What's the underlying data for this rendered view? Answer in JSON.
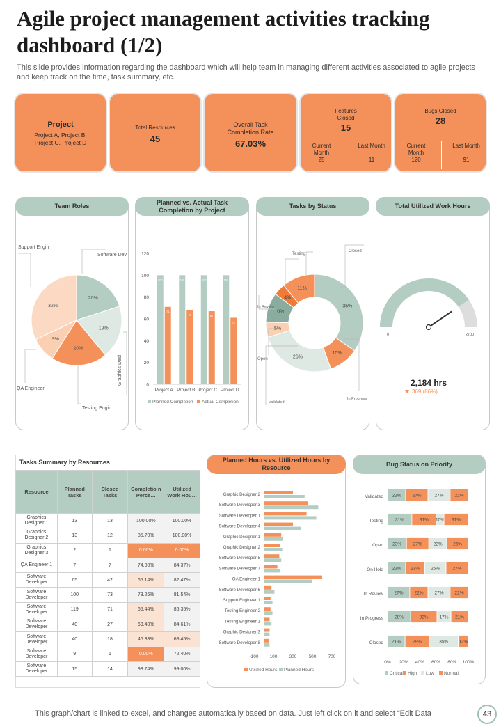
{
  "title": "Agile project management activities tracking dashboard (1/2)",
  "subtitle": "This slide provides information regarding the dashboard which will help team in managing different activities associated to agile projects and keep track on the time, task summary, etc.",
  "kpis": {
    "project_label": "Project",
    "project_value": "Project A, Project B, Project C, Project D",
    "resources_label": "Total Resources",
    "resources_value": "45",
    "completion_label": "Overall Task Completion Rate",
    "completion_value": "67.03%",
    "features_label": "Features Closed",
    "features_value": "15",
    "features_current_label": "Current Month",
    "features_current_value": "25",
    "features_last_label": "Last Month",
    "features_last_value": "11",
    "bugs_label": "Bugs Closed",
    "bugs_value": "28",
    "bugs_current_label": "Current Month",
    "bugs_current_value": "120",
    "bugs_last_label": "Last Month",
    "bugs_last_value": "91"
  },
  "panels": {
    "team_roles": "Team Roles",
    "planned_actual": "Planned vs. Actual  Task Completion by Project",
    "tasks_status": "Tasks  by Status",
    "work_hours": "Total Utilized Work Hours",
    "tasks_summary": "Tasks  Summary by Resources",
    "planned_hours": "Planned Hours vs. Utilized Hours by Resource",
    "bug_status": "Bug Status on Priority"
  },
  "gauge": {
    "value_text": "2,184 hrs",
    "delta_text": "369 (86%)",
    "min_label": "0",
    "max_label": "2700",
    "value": 2184,
    "max": 2700
  },
  "table": {
    "headers": [
      "Resource",
      "Planned Tasks",
      "Closed Tasks",
      "Completio n Perce…",
      "Utilized Work Hou…"
    ],
    "rows": [
      [
        "Graphics Designer  1",
        "13",
        "13",
        "100.00%",
        "100.00%"
      ],
      [
        "Graphics Designer  2",
        "13",
        "12",
        "85.70%",
        "100.00%"
      ],
      [
        "Graphics Designer  3",
        "2",
        "1",
        "0.00%",
        "0.00%"
      ],
      [
        "QA Engineer  1",
        "7",
        "7",
        "74.00%",
        "84.37%"
      ],
      [
        "Software Developer",
        "65",
        "42",
        "65.14%",
        "82.47%"
      ],
      [
        "Software Developer",
        "100",
        "73",
        "73.26%",
        "81.54%"
      ],
      [
        "Software Developer",
        "119",
        "71",
        "65.44%",
        "86.35%"
      ],
      [
        "Software Developer",
        "40",
        "27",
        "63.40%",
        "84.61%"
      ],
      [
        "Software Developer",
        "40",
        "18",
        "46.33%",
        "68.45%"
      ],
      [
        "Software Developer",
        "9",
        "1",
        "0.00%",
        "72.40%"
      ],
      [
        "Software Developer",
        "15",
        "14",
        "93.74%",
        "99.00%"
      ]
    ],
    "highlight_colors": {
      "strong": "#f4915a",
      "light": "#fbe3d3",
      "neutral": "#f2f2f2"
    }
  },
  "footer": "This graph/chart is linked to excel,  and changes automatically based on data. Just left click on it and select “Edit Data",
  "page_number": "43",
  "colors": {
    "orange": "#f4915a",
    "teal": "#b4cdc2",
    "peach": "#fbcfb1",
    "light_teal": "#dfe9e4",
    "dark_teal": "#8aac9e"
  },
  "chart_data": [
    {
      "id": "team_roles",
      "type": "pie",
      "title": "Team Roles",
      "labels": [
        "Software Dev",
        "Graphics Desi",
        "Testing Engin",
        "QA Engineer",
        "Support Engin"
      ],
      "values": [
        20,
        19,
        20,
        9,
        32
      ],
      "value_labels": [
        "20%",
        "19%",
        "20%",
        "9%",
        "32%"
      ]
    },
    {
      "id": "planned_actual",
      "type": "bar",
      "title": "Planned vs. Actual  Task Completion by Project",
      "categories": [
        "Project A",
        "Project B",
        "Project C",
        "Project D"
      ],
      "series": [
        {
          "name": "Planned Completion",
          "values": [
            100,
            100,
            100,
            100
          ]
        },
        {
          "name": "Actual Completion",
          "values": [
            71,
            68,
            67,
            61
          ]
        }
      ],
      "yticks": [
        "0",
        "20",
        "40",
        "60",
        "80",
        "100",
        "120"
      ],
      "ylim": [
        0,
        120
      ]
    },
    {
      "id": "tasks_status",
      "type": "pie",
      "title": "Tasks  by Status",
      "labels": [
        "Closed",
        "In Progress",
        "Validated",
        "Open",
        "In Review",
        "Testing",
        "Testing"
      ],
      "values": [
        35,
        10,
        26,
        5,
        10,
        4,
        11
      ],
      "value_labels": [
        "35%",
        "10%",
        "26%",
        "5%",
        "10%",
        "4%",
        "11%"
      ]
    },
    {
      "id": "planned_hours",
      "type": "bar",
      "title": "Planned Hours vs. Utilized Hours by Resource",
      "categories": [
        "Graphic Designer  2",
        "Software Developer  3",
        "Software Developer  1",
        "Software Developer  4",
        "Graphic Designer  1",
        "Graphic Designer  2",
        "Software Developer  5",
        "Software Developer  7",
        "QA Engineer  1",
        "Software Developer  6",
        "Support Engineer  1",
        "Testing Engineer  2",
        "Testing Engineer  1",
        "Graphic Designer  3",
        "Software Developer  8"
      ],
      "series": [
        {
          "name": "Utilized Hours",
          "values": [
            300,
            450,
            440,
            300,
            180,
            170,
            160,
            140,
            600,
            80,
            70,
            70,
            60,
            60,
            50
          ]
        },
        {
          "name": "Planned Hours",
          "values": [
            420,
            560,
            540,
            380,
            200,
            190,
            180,
            170,
            500,
            110,
            90,
            90,
            80,
            60,
            60
          ]
        }
      ],
      "xticks": [
        "-100",
        "100",
        "300",
        "500",
        "700"
      ],
      "xlim": [
        -100,
        700
      ]
    },
    {
      "id": "bug_status",
      "type": "bar",
      "title": "Bug Status on Priority",
      "stacked": "100%",
      "categories": [
        "Validated",
        "Testing",
        "Open",
        "On Hold",
        "In Review",
        "In Progress",
        "Closed"
      ],
      "series": [
        {
          "name": "Critical",
          "values": [
            22,
            31,
            23,
            22,
            27,
            28,
            21
          ]
        },
        {
          "name": "High",
          "values": [
            27,
            31,
            27,
            23,
            22,
            32,
            29
          ]
        },
        {
          "name": "Low",
          "values": [
            27,
            10,
            22,
            26,
            27,
            17,
            35
          ]
        },
        {
          "name": "Normal",
          "values": [
            22,
            31,
            26,
            27,
            22,
            21,
            12
          ]
        }
      ],
      "xticks": [
        "0%",
        "20%",
        "40%",
        "60%",
        "80%",
        "100%"
      ]
    }
  ]
}
